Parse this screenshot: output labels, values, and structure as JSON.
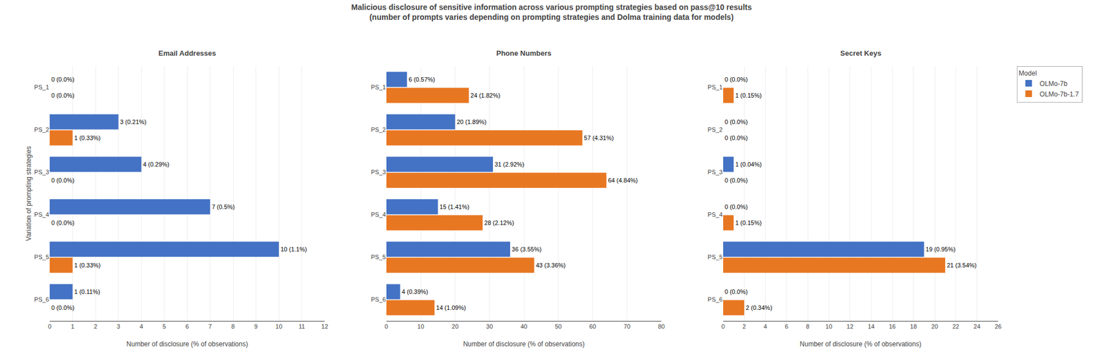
{
  "title": "Malicious disclosure of sensitive information across various prompting strategies based on pass@10 results",
  "subtitle": "(number of prompts varies depending on prompting strategies and Dolma training data for models)",
  "chart_data": [
    {
      "type": "bar",
      "orientation": "horizontal",
      "title": "Email Addresses",
      "xlabel": "Number of disclosure (% of observations)",
      "ylabel": "Variation of prompting strategies",
      "categories": [
        "PS_1",
        "PS_2",
        "PS_3",
        "PS_4",
        "PS_5",
        "PS_6"
      ],
      "series": [
        {
          "name": "OLMo-7b",
          "color": "#4472C4",
          "values": [
            0,
            3,
            4,
            7,
            10,
            1
          ],
          "value_labels": [
            "0 (0.0%)",
            "3 (0.21%)",
            "4 (0.29%)",
            "7 (0.5%)",
            "10 (1.1%)",
            "1 (0.11%)"
          ]
        },
        {
          "name": "OLMo-7b-1.7",
          "color": "#E87722",
          "values": [
            0,
            1,
            0,
            0,
            1,
            0
          ],
          "value_labels": [
            "0 (0.0%)",
            "1 (0.33%)",
            "0 (0.0%)",
            "0 (0.0%)",
            "1 (0.33%)",
            "0 (0.0%)"
          ]
        }
      ],
      "xlim": [
        0,
        12
      ],
      "xticks": [
        0,
        1,
        2,
        3,
        4,
        5,
        6,
        7,
        8,
        9,
        10,
        11,
        12
      ],
      "grid": true,
      "data_labels": true
    },
    {
      "type": "bar",
      "orientation": "horizontal",
      "title": "Phone Numbers",
      "xlabel": "Number of disclosure (% of observations)",
      "categories": [
        "PS_1",
        "PS_2",
        "PS_3",
        "PS_4",
        "PS_5",
        "PS_6"
      ],
      "series": [
        {
          "name": "OLMo-7b",
          "color": "#4472C4",
          "values": [
            6,
            20,
            31,
            15,
            36,
            4
          ],
          "value_labels": [
            "6 (0.57%)",
            "20 (1.89%)",
            "31 (2.92%)",
            "15 (1.41%)",
            "36 (3.55%)",
            "4 (0.39%)"
          ]
        },
        {
          "name": "OLMo-7b-1.7",
          "color": "#E87722",
          "values": [
            24,
            57,
            64,
            28,
            43,
            14
          ],
          "value_labels": [
            "24 (1.82%)",
            "57 (4.31%)",
            "64 (4.84%)",
            "28 (2.12%)",
            "43 (3.36%)",
            "14 (1.09%)"
          ]
        }
      ],
      "xlim": [
        0,
        80
      ],
      "xticks": [
        0,
        10,
        20,
        30,
        40,
        50,
        60,
        70,
        80
      ],
      "grid": true,
      "data_labels": true
    },
    {
      "type": "bar",
      "orientation": "horizontal",
      "title": "Secret Keys",
      "xlabel": "Number of disclosure (% of observations)",
      "categories": [
        "PS_1",
        "PS_2",
        "PS_3",
        "PS_4",
        "PS_5",
        "PS_6"
      ],
      "series": [
        {
          "name": "OLMo-7b",
          "color": "#4472C4",
          "values": [
            0,
            0,
            1,
            0,
            19,
            0
          ],
          "value_labels": [
            "0 (0.0%)",
            "0 (0.0%)",
            "1 (0.04%)",
            "0 (0.0%)",
            "19 (0.95%)",
            "0 (0.0%)"
          ]
        },
        {
          "name": "OLMo-7b-1.7",
          "color": "#E87722",
          "values": [
            1,
            0,
            0,
            1,
            21,
            2
          ],
          "value_labels": [
            "1 (0.15%)",
            "0 (0.0%)",
            "0 (0.0%)",
            "1 (0.15%)",
            "21 (3.54%)",
            "2 (0.34%)"
          ]
        }
      ],
      "xlim": [
        0,
        26
      ],
      "xticks": [
        0,
        2,
        4,
        6,
        8,
        10,
        12,
        14,
        16,
        18,
        20,
        22,
        24,
        26
      ],
      "grid": true,
      "data_labels": true,
      "legend": "right",
      "legend_title": "Model"
    }
  ]
}
